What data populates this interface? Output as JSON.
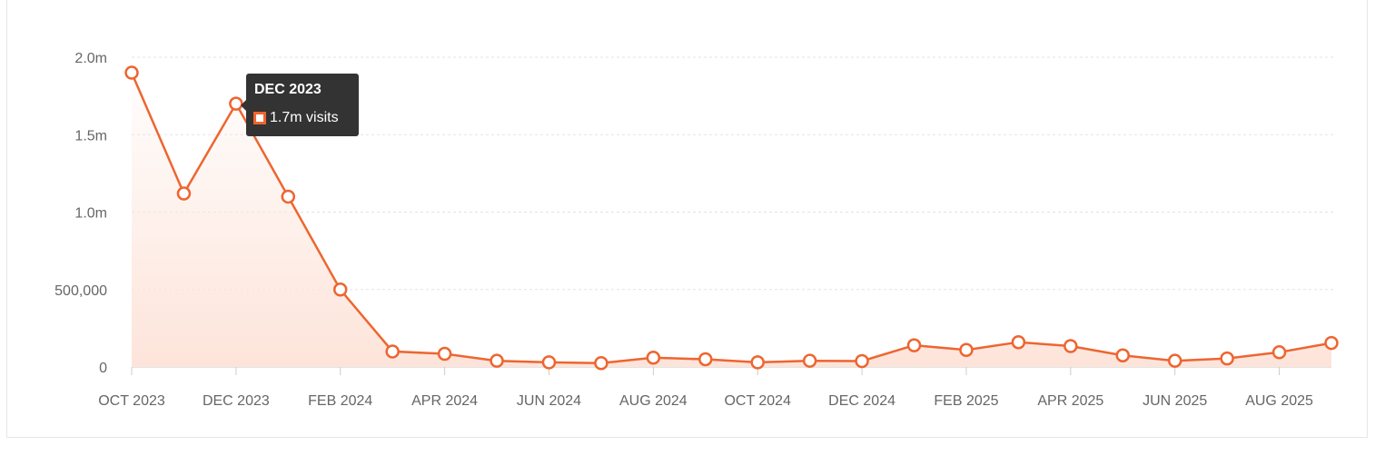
{
  "colors": {
    "series": "#ee6530",
    "fill_top": "#fde4da",
    "grid": "#e3e3e3",
    "tick_text": "#666666"
  },
  "tooltip": {
    "title": "DEC 2023",
    "value_text": "1.7m visits"
  },
  "chart_data": {
    "type": "area",
    "title": "",
    "xlabel": "",
    "ylabel": "",
    "ylim": [
      0,
      2000000
    ],
    "y_ticks": [
      {
        "value": 0,
        "label": "0"
      },
      {
        "value": 500000,
        "label": "500,000"
      },
      {
        "value": 1000000,
        "label": "1.0m"
      },
      {
        "value": 1500000,
        "label": "1.5m"
      },
      {
        "value": 2000000,
        "label": "2.0m"
      }
    ],
    "x_tick_labels": [
      "OCT 2023",
      "DEC 2023",
      "FEB 2024",
      "APR 2024",
      "JUN 2024",
      "AUG 2024",
      "OCT 2024",
      "DEC 2024",
      "FEB 2025",
      "APR 2025",
      "JUN 2025",
      "AUG 2025"
    ],
    "x": [
      "OCT 2023",
      "NOV 2023",
      "DEC 2023",
      "JAN 2024",
      "FEB 2024",
      "MAR 2024",
      "APR 2024",
      "MAY 2024",
      "JUN 2024",
      "JUL 2024",
      "AUG 2024",
      "SEP 2024",
      "OCT 2024",
      "NOV 2024",
      "DEC 2024",
      "JAN 2025",
      "FEB 2025",
      "MAR 2025",
      "APR 2025",
      "MAY 2025",
      "JUN 2025",
      "JUL 2025",
      "AUG 2025",
      "SEP 2025"
    ],
    "series": [
      {
        "values": [
          1900000,
          1120000,
          1700000,
          1100000,
          500000,
          100000,
          85000,
          40000,
          30000,
          25000,
          60000,
          50000,
          30000,
          40000,
          38000,
          140000,
          110000,
          160000,
          135000,
          75000,
          40000,
          55000,
          95000,
          155000
        ]
      }
    ],
    "highlighted_index": 2,
    "grid": true,
    "legend": "none"
  }
}
